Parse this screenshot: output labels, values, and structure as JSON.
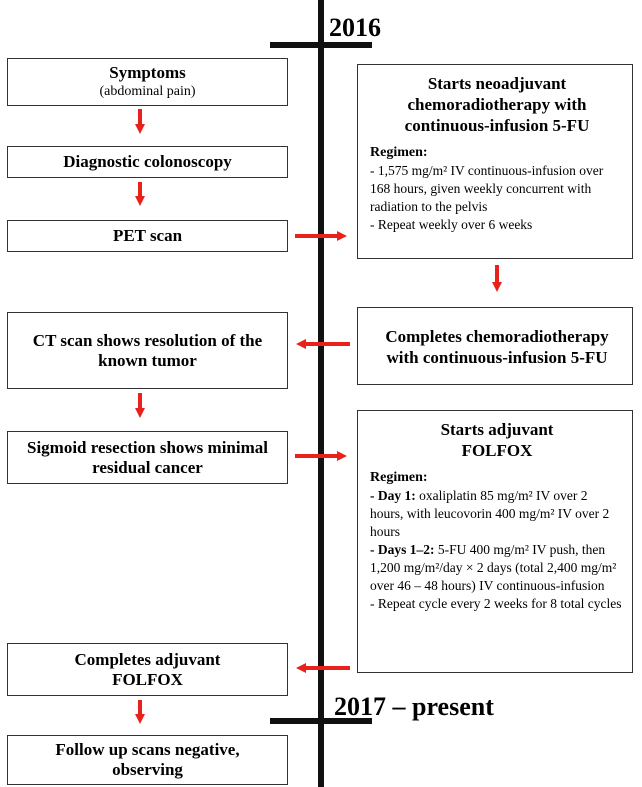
{
  "timeline": {
    "start_label": "2016",
    "end_label": "2017 – present"
  },
  "left": [
    {
      "title": "Symptoms",
      "subtitle": "(abdominal pain)"
    },
    {
      "title": "Diagnostic colonoscopy"
    },
    {
      "title": "PET scan"
    },
    {
      "title": "CT scan shows resolution of the known tumor"
    },
    {
      "title": "Sigmoid resection shows minimal residual cancer"
    },
    {
      "title": "Completes adjuvant FOLFOX"
    },
    {
      "title": "Follow up scans negative, observing"
    }
  ],
  "right": [
    {
      "title": "Starts neoadjuvant chemoradiotherapy with continuous-infusion 5-FU",
      "regimen_label": "Regimen:",
      "lines": [
        "- 1,575 mg/m² IV continuous-infusion over 168 hours, given weekly concurrent with radiation to the pelvis",
        "- Repeat weekly over 6 weeks"
      ]
    },
    {
      "title": "Completes chemoradiotherapy with continuous-infusion 5-FU"
    },
    {
      "title": "Starts adjuvant FOLFOX",
      "regimen_label": "Regimen:",
      "lines": [
        {
          "bold": "- Day 1:",
          "text": " oxaliplatin 85 mg/m² IV over 2 hours, with leucovorin 400 mg/m² IV over 2 hours"
        },
        {
          "bold": "- Days 1–2:",
          "text": " 5-FU 400 mg/m² IV push, then 1,200 mg/m²/day × 2 days (total 2,400 mg/m² over 46 – 48 hours) IV continuous-infusion"
        },
        {
          "bold": "",
          "text": "- Repeat cycle every 2 weeks for 8 total cycles"
        }
      ]
    }
  ],
  "colors": {
    "arrow": "#e8221b",
    "timeline": "#111111",
    "border": "#333333"
  }
}
